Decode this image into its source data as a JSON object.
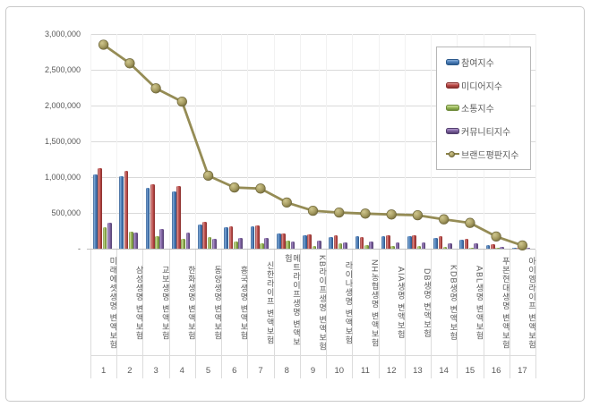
{
  "chart_data": {
    "type": "bar",
    "subtype": "clustered-bars-with-line-overlay",
    "title": "",
    "categories": [
      "미래에셋생명 변액보험",
      "삼성생명 변액보험",
      "교보생명 변액보험",
      "한화생명 변액보험",
      "동양생명 변액보험",
      "흥국생명 변액보험",
      "신한라이프 변액보험",
      "메트라이프생명 변액보험",
      "KB라이프생명 변액보험",
      "라이나생명 변액보험",
      "NH농협생명 변액보험",
      "AIA생명 변액보험",
      "DB생명 변액보험",
      "KDB생명 변액보험",
      "ABL생명 변액보험",
      "푸본현대생명 변액보험",
      "아이엠라이프 변액보험"
    ],
    "category_numbers": [
      "1",
      "2",
      "3",
      "4",
      "5",
      "6",
      "7",
      "8",
      "9",
      "10",
      "11",
      "12",
      "13",
      "14",
      "15",
      "16",
      "17"
    ],
    "series": [
      {
        "name": "참여지수",
        "type": "bar",
        "color": "#4f81bd",
        "values": [
          1040000,
          1015000,
          845000,
          805000,
          340000,
          300000,
          315000,
          210000,
          185000,
          165000,
          180000,
          175000,
          175000,
          150000,
          130000,
          55000,
          15000
        ]
      },
      {
        "name": "미디어지수",
        "type": "bar",
        "color": "#c0504d",
        "values": [
          1125000,
          1090000,
          905000,
          875000,
          375000,
          315000,
          320000,
          215000,
          195000,
          185000,
          165000,
          185000,
          185000,
          170000,
          135000,
          60000,
          18000
        ]
      },
      {
        "name": "소통지수",
        "type": "bar",
        "color": "#9bbb59",
        "values": [
          300000,
          240000,
          180000,
          135000,
          165000,
          105000,
          70000,
          110000,
          40000,
          70000,
          55000,
          40000,
          35000,
          30000,
          15000,
          10000,
          5000
        ]
      },
      {
        "name": "커뮤니티지수",
        "type": "bar",
        "color": "#8064a2",
        "values": [
          360000,
          230000,
          270000,
          230000,
          135000,
          145000,
          155000,
          95000,
          110000,
          90000,
          100000,
          85000,
          90000,
          80000,
          70000,
          25000,
          8000
        ]
      },
      {
        "name": "브랜드평판지수",
        "type": "line",
        "color": "#948a54",
        "values": [
          2850000,
          2590000,
          2240000,
          2055000,
          1020000,
          855000,
          840000,
          645000,
          530000,
          505000,
          490000,
          478000,
          468000,
          410000,
          360000,
          170000,
          45000
        ]
      }
    ],
    "y_axis": {
      "tick_labels": [
        "3,000,000",
        "2,500,000",
        "2,000,000",
        "1,500,000",
        "1,000,000",
        "500,000",
        "-"
      ],
      "tick_values": [
        3000000,
        2500000,
        2000000,
        1500000,
        1000000,
        500000,
        0
      ],
      "min": 0,
      "max": 3000000,
      "grid": true
    },
    "xlabel": "",
    "ylabel": "",
    "legend_position": "top-right"
  },
  "colors": {
    "participation": "#4f81bd",
    "media": "#c0504d",
    "communication": "#9bbb59",
    "community": "#8064a2",
    "brand_line": "#948a54",
    "gridline": "#d9d9d9",
    "axis": "#bfbfbf",
    "text": "#595959",
    "frame_border": "#c9c9c9"
  }
}
